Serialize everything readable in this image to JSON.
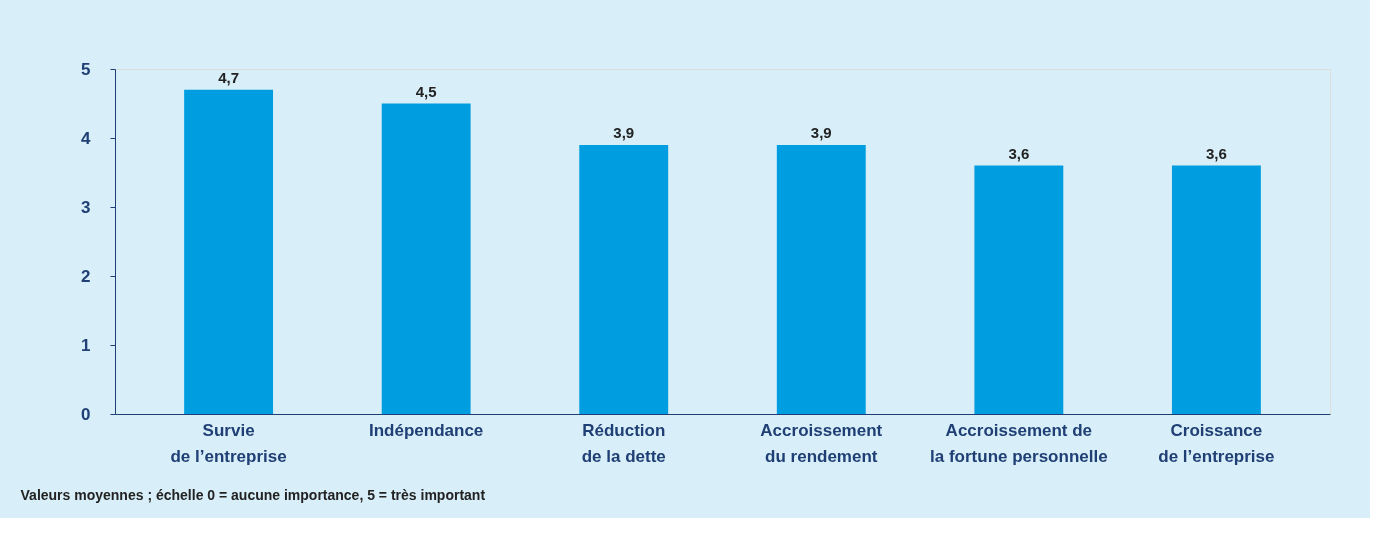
{
  "chart_data": {
    "type": "bar",
    "categories": [
      "Survie\nde l’entreprise",
      "Indépendance",
      "Réduction\nde la dette",
      "Accroissement\ndu rendement",
      "Accroissement de\nla fortune personnelle",
      "Croissance\nde l’entreprise"
    ],
    "values": [
      4.7,
      4.5,
      3.9,
      3.9,
      3.6,
      3.6
    ],
    "value_labels": [
      "4,7",
      "4,5",
      "3,9",
      "3,9",
      "3,6",
      "3,6"
    ],
    "color": "#009ee0",
    "ylim": [
      0,
      5
    ],
    "yticks": [
      0,
      1,
      2,
      3,
      4,
      5
    ],
    "grid": false,
    "annotations": [
      "Valeurs moyennes ; échelle 0 = aucune importance, 5 = très important"
    ]
  }
}
